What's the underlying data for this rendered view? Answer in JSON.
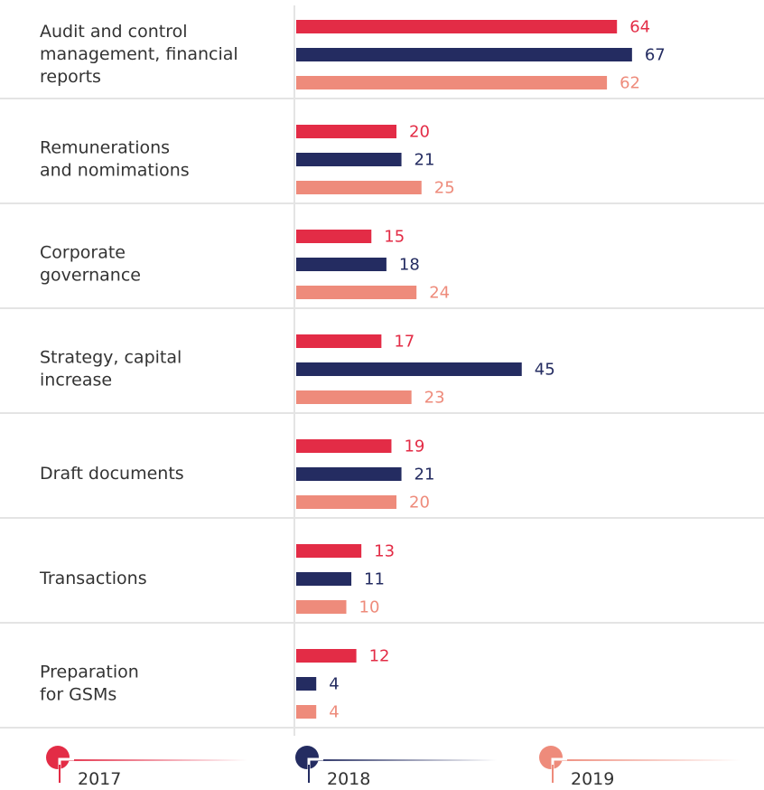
{
  "chart_data": {
    "type": "bar",
    "orientation": "horizontal",
    "grid": false,
    "legend_position": "bottom",
    "categories": [
      [
        "Audit and control",
        "management, financial",
        "reports"
      ],
      [
        "Remunerations",
        "and nomimations"
      ],
      [
        "Corporate",
        "governance"
      ],
      [
        "Strategy, capital",
        "increase"
      ],
      [
        "Draft documents"
      ],
      [
        "Transactions"
      ],
      [
        "Preparation",
        "for GSMs"
      ]
    ],
    "series": [
      {
        "name": "2017",
        "color": "#e32c46",
        "label_color": "#e32c46",
        "values": [
          64,
          20,
          15,
          17,
          19,
          13,
          12
        ]
      },
      {
        "name": "2018",
        "color": "#242c61",
        "label_color": "#242c61",
        "values": [
          67,
          21,
          18,
          45,
          21,
          11,
          4
        ]
      },
      {
        "name": "2019",
        "color": "#ee8b7b",
        "label_color": "#ee8b7b",
        "values": [
          62,
          25,
          24,
          23,
          20,
          10,
          4
        ]
      }
    ],
    "xlim": [
      0,
      75
    ]
  },
  "colors": {
    "separator": "#e4e4e4",
    "axis": "#e4e4e4",
    "text": "#333333"
  }
}
